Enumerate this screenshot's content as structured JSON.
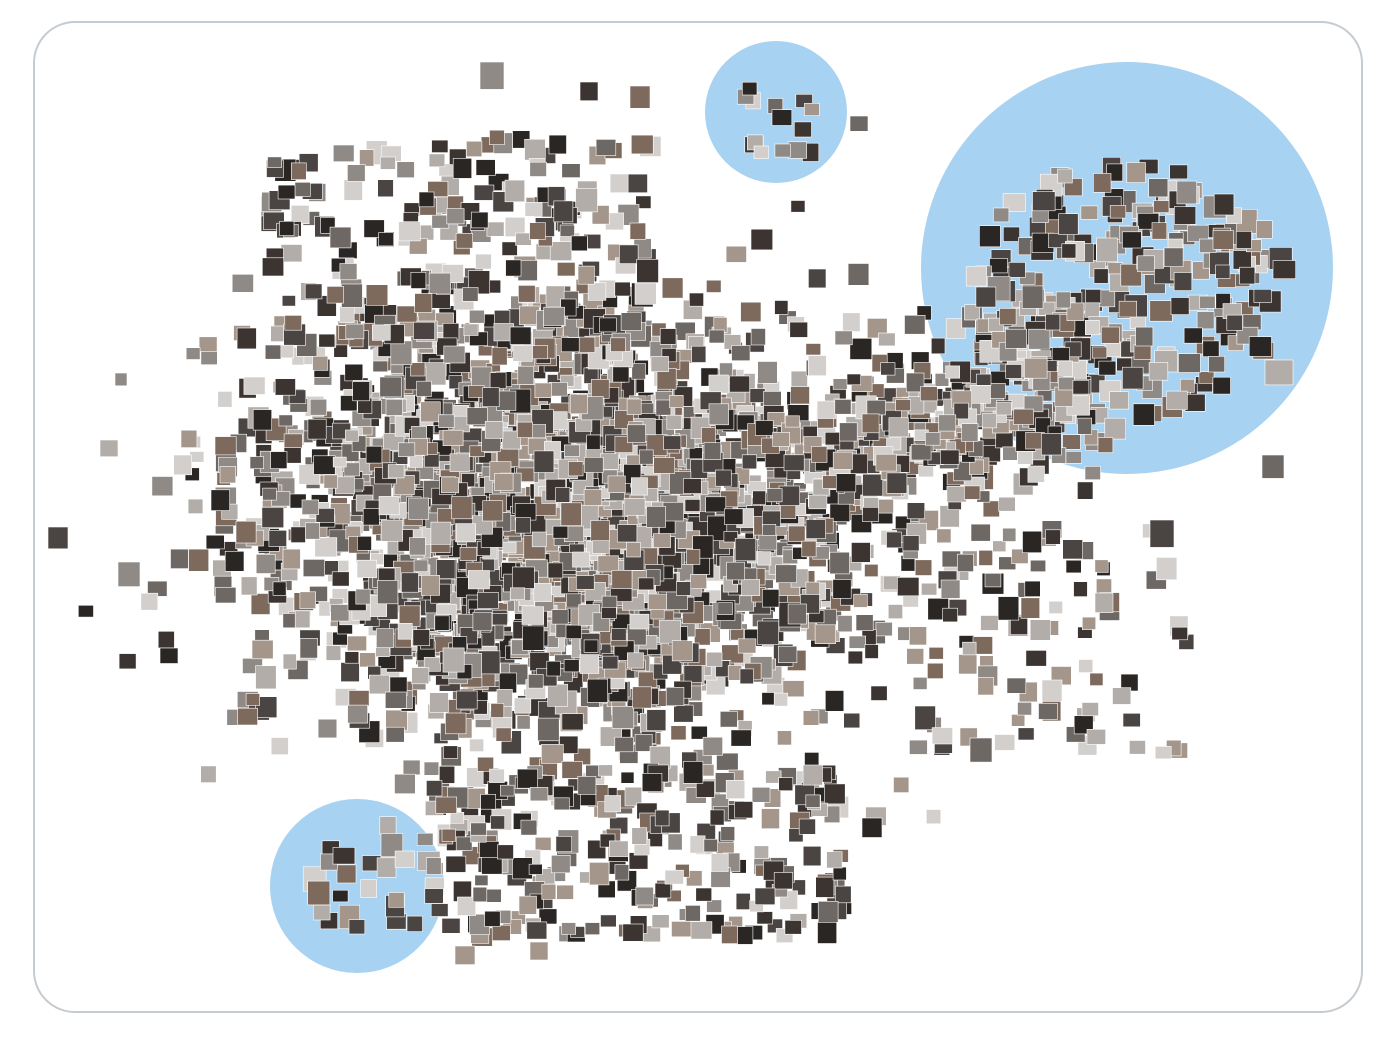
{
  "figure": {
    "kind": "image embedding scatter (t-SNE style map of photo thumbnails)",
    "background_color": "#ffffff",
    "frame_border_color": "#c5ccd1",
    "highlight_color": "#a8d2f1",
    "thumbnail_palette": [
      "#2a2624",
      "#4a4542",
      "#6e6864",
      "#8f8a86",
      "#b2ada9",
      "#d2cfcc",
      "#7d6a5d",
      "#a4968b",
      "#3b3431"
    ]
  },
  "highlighted_clusters": [
    {
      "name": "cluster-top-center",
      "label": ""
    },
    {
      "name": "cluster-top-right",
      "label": ""
    },
    {
      "name": "cluster-bottom-left",
      "label": ""
    }
  ]
}
